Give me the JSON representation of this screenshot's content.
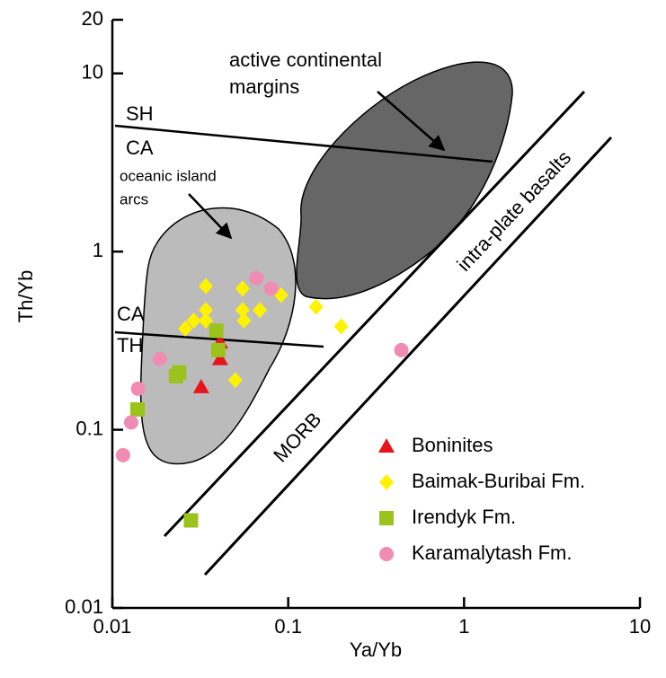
{
  "chart_data": {
    "type": "scatter",
    "x_label": "Ya/Yb",
    "y_label": "Th/Yb",
    "xscale": "log",
    "yscale": "log",
    "xlim": [
      0.01,
      10
    ],
    "ylim": [
      0.01,
      20
    ],
    "xticks": [
      0.01,
      0.1,
      1,
      10
    ],
    "yticks": [
      0.01,
      0.1,
      1,
      10,
      20
    ],
    "legend": "lower right",
    "annotations": [
      "active continental",
      "margins",
      "SH",
      "CA",
      "oceanic island",
      "arcs",
      "CA",
      "TH",
      "MORB",
      "intra-plate basalts"
    ],
    "series": [
      {
        "name": "Boninites",
        "color": "#e8141c",
        "marker": "triangle",
        "x": [
          0.041,
          0.041,
          0.032
        ],
        "values": [
          0.31,
          0.25,
          0.174
        ]
      },
      {
        "name": "Baimak-Buribai Fm.",
        "color": "#fff200",
        "marker": "diamond",
        "x": [
          0.034,
          0.055,
          0.091,
          0.034,
          0.034,
          0.026,
          0.029,
          0.055,
          0.069,
          0.056,
          0.05,
          0.144,
          0.2
        ],
        "values": [
          0.64,
          0.62,
          0.57,
          0.47,
          0.41,
          0.37,
          0.41,
          0.47,
          0.47,
          0.41,
          0.19,
          0.49,
          0.38
        ]
      },
      {
        "name": "Irendyk Fm.",
        "color": "#9bc31c",
        "marker": "square",
        "x": [
          0.023,
          0.024,
          0.039,
          0.04,
          0.0139,
          0.028
        ],
        "values": [
          0.2,
          0.21,
          0.36,
          0.28,
          0.13,
          0.031
        ]
      },
      {
        "name": "Karamalytash Fm.",
        "color": "#f08cb4",
        "marker": "circle",
        "x": [
          0.066,
          0.08,
          0.0186,
          0.014,
          0.0128,
          0.0115,
          0.44
        ],
        "values": [
          0.71,
          0.62,
          0.25,
          0.17,
          0.11,
          0.072,
          0.28
        ]
      }
    ]
  }
}
